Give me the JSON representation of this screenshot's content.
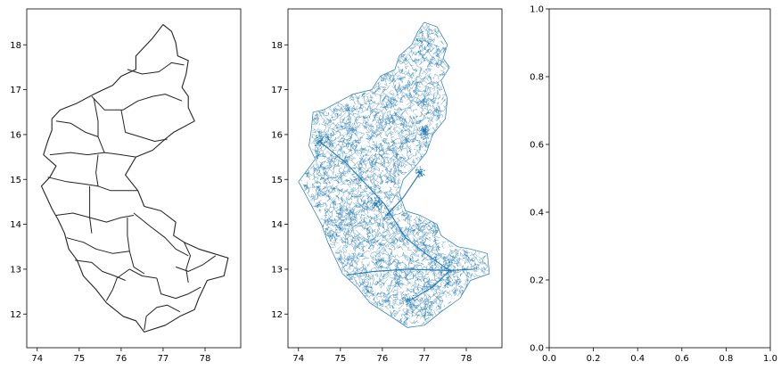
{
  "chart_data": [
    {
      "type": "map",
      "title": "",
      "xlabel": "",
      "ylabel": "",
      "xlim": [
        73.75,
        78.85
      ],
      "ylim": [
        11.25,
        18.8
      ],
      "xticks": [
        74,
        75,
        76,
        77,
        78
      ],
      "yticks": [
        12,
        13,
        14,
        15,
        16,
        17,
        18
      ],
      "grid": false,
      "style": {
        "color": "#222222",
        "content": "district boundaries"
      },
      "outline": [
        [
          77.0,
          18.45
        ],
        [
          77.2,
          18.3
        ],
        [
          77.3,
          18.05
        ],
        [
          77.35,
          17.75
        ],
        [
          77.6,
          17.65
        ],
        [
          77.55,
          17.35
        ],
        [
          77.45,
          17.05
        ],
        [
          77.6,
          16.85
        ],
        [
          77.6,
          16.6
        ],
        [
          77.75,
          16.3
        ],
        [
          77.25,
          16.05
        ],
        [
          77.05,
          15.9
        ],
        [
          76.75,
          15.65
        ],
        [
          76.35,
          15.5
        ],
        [
          76.1,
          15.1
        ],
        [
          76.4,
          14.75
        ],
        [
          76.55,
          14.4
        ],
        [
          76.95,
          14.3
        ],
        [
          77.3,
          14.05
        ],
        [
          77.25,
          13.75
        ],
        [
          77.5,
          13.6
        ],
        [
          77.85,
          13.45
        ],
        [
          78.2,
          13.35
        ],
        [
          78.55,
          13.25
        ],
        [
          78.45,
          12.85
        ],
        [
          78.05,
          12.75
        ],
        [
          77.85,
          12.35
        ],
        [
          77.75,
          12.1
        ],
        [
          77.4,
          11.95
        ],
        [
          77.05,
          11.75
        ],
        [
          76.55,
          11.6
        ],
        [
          76.35,
          11.85
        ],
        [
          76.05,
          11.95
        ],
        [
          75.65,
          12.25
        ],
        [
          75.4,
          12.55
        ],
        [
          75.1,
          12.85
        ],
        [
          74.95,
          13.2
        ],
        [
          74.75,
          13.45
        ],
        [
          74.65,
          13.8
        ],
        [
          74.5,
          14.1
        ],
        [
          74.35,
          14.35
        ],
        [
          74.2,
          14.65
        ],
        [
          74.1,
          14.85
        ],
        [
          74.3,
          15.05
        ],
        [
          74.45,
          15.3
        ],
        [
          74.15,
          15.55
        ],
        [
          74.25,
          15.85
        ],
        [
          74.35,
          16.1
        ],
        [
          74.35,
          16.35
        ],
        [
          74.55,
          16.55
        ],
        [
          74.95,
          16.7
        ],
        [
          75.35,
          16.9
        ],
        [
          75.8,
          17.1
        ],
        [
          76.0,
          17.3
        ],
        [
          76.35,
          17.45
        ],
        [
          76.35,
          17.75
        ],
        [
          76.55,
          17.95
        ],
        [
          76.75,
          18.15
        ],
        [
          77.0,
          18.45
        ]
      ],
      "boundaries": [
        [
          [
            76.15,
            17.45
          ],
          [
            76.5,
            17.35
          ],
          [
            76.9,
            17.4
          ],
          [
            77.2,
            17.6
          ],
          [
            77.5,
            17.55
          ]
        ],
        [
          [
            75.3,
            16.85
          ],
          [
            75.6,
            16.55
          ],
          [
            76.05,
            16.55
          ],
          [
            76.4,
            16.75
          ],
          [
            76.75,
            16.85
          ],
          [
            77.05,
            16.9
          ],
          [
            77.45,
            16.75
          ]
        ],
        [
          [
            74.45,
            16.3
          ],
          [
            74.8,
            16.25
          ],
          [
            75.15,
            16.05
          ],
          [
            75.45,
            15.95
          ]
        ],
        [
          [
            75.35,
            16.8
          ],
          [
            75.45,
            16.3
          ],
          [
            75.45,
            15.95
          ],
          [
            75.6,
            15.6
          ]
        ],
        [
          [
            76.0,
            16.55
          ],
          [
            76.1,
            16.05
          ],
          [
            76.45,
            15.95
          ],
          [
            76.8,
            15.85
          ],
          [
            77.1,
            15.9
          ]
        ],
        [
          [
            74.3,
            15.55
          ],
          [
            74.8,
            15.6
          ],
          [
            75.2,
            15.55
          ],
          [
            75.6,
            15.6
          ],
          [
            76.0,
            15.55
          ],
          [
            76.35,
            15.5
          ]
        ],
        [
          [
            74.25,
            15.05
          ],
          [
            74.7,
            14.95
          ],
          [
            75.1,
            14.9
          ],
          [
            75.45,
            14.85
          ]
        ],
        [
          [
            75.45,
            15.55
          ],
          [
            75.4,
            15.15
          ],
          [
            75.45,
            14.85
          ],
          [
            75.75,
            14.75
          ],
          [
            76.1,
            14.75
          ],
          [
            76.4,
            14.75
          ]
        ],
        [
          [
            74.45,
            14.2
          ],
          [
            74.85,
            14.25
          ],
          [
            75.25,
            14.15
          ],
          [
            75.65,
            14.05
          ],
          [
            76.0,
            14.15
          ],
          [
            76.3,
            14.2
          ]
        ],
        [
          [
            75.25,
            14.85
          ],
          [
            75.25,
            14.5
          ],
          [
            75.25,
            14.15
          ],
          [
            75.3,
            13.8
          ]
        ],
        [
          [
            74.7,
            13.7
          ],
          [
            75.1,
            13.6
          ],
          [
            75.4,
            13.45
          ],
          [
            75.8,
            13.35
          ],
          [
            76.2,
            13.4
          ]
        ],
        [
          [
            74.9,
            13.2
          ],
          [
            75.3,
            13.15
          ],
          [
            75.55,
            12.95
          ],
          [
            75.85,
            12.85
          ],
          [
            76.1,
            12.75
          ]
        ],
        [
          [
            75.65,
            12.3
          ],
          [
            75.8,
            12.55
          ],
          [
            75.9,
            12.8
          ],
          [
            76.2,
            13.0
          ],
          [
            76.5,
            12.85
          ],
          [
            76.85,
            12.8
          ]
        ],
        [
          [
            76.15,
            14.15
          ],
          [
            76.15,
            13.75
          ],
          [
            76.2,
            13.4
          ],
          [
            76.3,
            13.05
          ],
          [
            76.55,
            12.9
          ]
        ],
        [
          [
            76.3,
            14.25
          ],
          [
            76.7,
            13.95
          ],
          [
            77.05,
            13.7
          ],
          [
            77.3,
            13.45
          ],
          [
            77.6,
            13.3
          ]
        ],
        [
          [
            76.85,
            12.8
          ],
          [
            76.95,
            12.45
          ],
          [
            77.3,
            12.35
          ],
          [
            77.6,
            12.45
          ],
          [
            77.9,
            12.6
          ]
        ],
        [
          [
            76.55,
            11.65
          ],
          [
            76.6,
            11.95
          ],
          [
            76.85,
            12.15
          ],
          [
            77.1,
            12.2
          ],
          [
            77.4,
            12.05
          ]
        ],
        [
          [
            77.3,
            13.05
          ],
          [
            77.6,
            12.95
          ],
          [
            77.95,
            13.1
          ],
          [
            78.25,
            13.3
          ]
        ],
        [
          [
            77.5,
            13.6
          ],
          [
            77.65,
            13.3
          ],
          [
            77.55,
            13.0
          ],
          [
            77.6,
            12.7
          ]
        ]
      ]
    },
    {
      "type": "map",
      "title": "",
      "xlabel": "",
      "ylabel": "",
      "xlim": [
        73.75,
        78.85
      ],
      "ylim": [
        11.25,
        18.8
      ],
      "xticks": [
        74,
        75,
        76,
        77,
        78
      ],
      "yticks": [
        12,
        13,
        14,
        15,
        16,
        17,
        18
      ],
      "grid": false,
      "style": {
        "color": "#1f77b4",
        "content": "road network"
      },
      "outline": [
        [
          77.0,
          18.5
        ],
        [
          77.3,
          18.4
        ],
        [
          77.55,
          18.0
        ],
        [
          77.45,
          17.7
        ],
        [
          77.6,
          17.5
        ],
        [
          77.4,
          17.2
        ],
        [
          77.55,
          16.8
        ],
        [
          77.5,
          16.35
        ],
        [
          77.2,
          16.0
        ],
        [
          77.05,
          15.6
        ],
        [
          76.75,
          15.25
        ],
        [
          76.5,
          15.0
        ],
        [
          76.4,
          14.7
        ],
        [
          76.55,
          14.3
        ],
        [
          76.9,
          14.2
        ],
        [
          77.3,
          14.0
        ],
        [
          77.4,
          13.75
        ],
        [
          77.8,
          13.5
        ],
        [
          78.1,
          13.45
        ],
        [
          78.5,
          13.35
        ],
        [
          78.55,
          12.9
        ],
        [
          78.1,
          12.75
        ],
        [
          77.85,
          12.35
        ],
        [
          77.4,
          12.05
        ],
        [
          77.0,
          11.75
        ],
        [
          76.6,
          11.7
        ],
        [
          76.2,
          11.95
        ],
        [
          75.7,
          12.25
        ],
        [
          75.4,
          12.6
        ],
        [
          75.05,
          12.9
        ],
        [
          74.9,
          13.2
        ],
        [
          74.7,
          13.6
        ],
        [
          74.55,
          14.0
        ],
        [
          74.35,
          14.35
        ],
        [
          74.15,
          14.7
        ],
        [
          74.0,
          14.95
        ],
        [
          74.2,
          15.2
        ],
        [
          74.4,
          15.45
        ],
        [
          74.25,
          15.75
        ],
        [
          74.3,
          16.05
        ],
        [
          74.35,
          16.5
        ],
        [
          74.6,
          16.55
        ],
        [
          75.0,
          16.75
        ],
        [
          75.3,
          16.9
        ],
        [
          75.75,
          17.0
        ],
        [
          75.95,
          17.3
        ],
        [
          76.3,
          17.45
        ],
        [
          76.4,
          17.75
        ],
        [
          76.7,
          18.0
        ],
        [
          76.85,
          18.3
        ],
        [
          77.0,
          18.5
        ]
      ],
      "boundaries": []
    },
    {
      "type": "empty",
      "title": "",
      "xlabel": "",
      "ylabel": "",
      "xlim": [
        0,
        1
      ],
      "ylim": [
        0,
        1
      ],
      "xticks": [
        0.0,
        0.2,
        0.4,
        0.6,
        0.8,
        1.0
      ],
      "yticks": [
        0.0,
        0.2,
        0.4,
        0.6,
        0.8,
        1.0
      ],
      "xtick_labels": [
        "0.0",
        "0.2",
        "0.4",
        "0.6",
        "0.8",
        "1.0"
      ],
      "ytick_labels": [
        "0.0",
        "0.2",
        "0.4",
        "0.6",
        "0.8",
        "1.0"
      ],
      "grid": false
    }
  ]
}
